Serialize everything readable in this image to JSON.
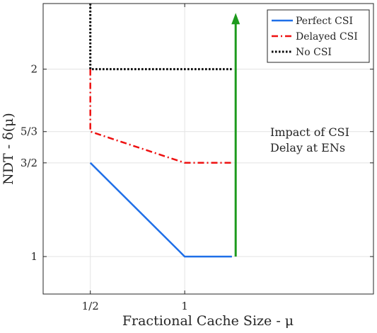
{
  "chart_data": {
    "type": "line",
    "xlabel": "Fractional Cache Size - μ",
    "ylabel": "NDT - δ(μ)",
    "xlim": [
      0.25,
      2.0
    ],
    "ylim": [
      0.8,
      2.35
    ],
    "x_ticks": [
      {
        "value": 0.5,
        "label": "1/2"
      },
      {
        "value": 1.0,
        "label": "1"
      }
    ],
    "y_ticks": [
      {
        "value": 1.0,
        "label": "1"
      },
      {
        "value": 1.5,
        "label": "3/2"
      },
      {
        "value": 1.6667,
        "label": "5/3"
      },
      {
        "value": 2.0,
        "label": "2"
      }
    ],
    "grid": true,
    "legend_position": "top-right",
    "series": [
      {
        "name": "Perfect CSI",
        "color": "#1f6fe8",
        "style": "solid",
        "x": [
          0.5,
          0.5,
          1.0,
          1.25
        ],
        "y": [
          1.5,
          1.5,
          1.0,
          1.0
        ]
      },
      {
        "name": "Delayed CSI",
        "color": "#ee1111",
        "style": "dashdot",
        "x": [
          0.5,
          0.5,
          1.0,
          1.25
        ],
        "y": [
          2.0,
          1.6667,
          1.5,
          1.5
        ]
      },
      {
        "name": "No CSI",
        "color": "#000000",
        "style": "dotted",
        "x": [
          0.5,
          0.5,
          1.25
        ],
        "y": [
          2.35,
          2.0,
          2.0
        ]
      }
    ],
    "annotations": [
      {
        "type": "arrow",
        "color": "#1d9a1d",
        "x": 1.27,
        "y_start": 1.0,
        "y_end": 2.3
      },
      {
        "type": "text",
        "lines": [
          "Impact of CSI",
          "Delay at ENs"
        ]
      }
    ]
  }
}
